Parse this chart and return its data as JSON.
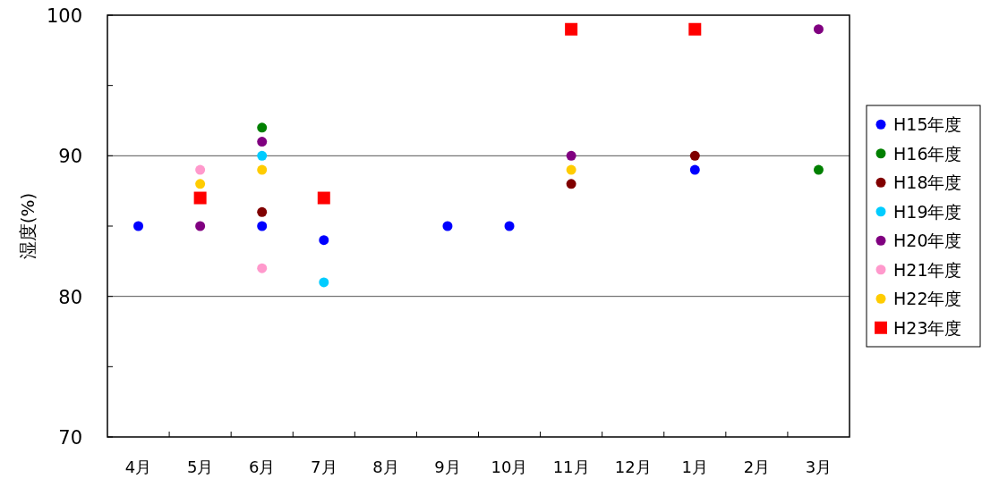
{
  "chart_data": {
    "type": "scatter",
    "ylabel": "湿度(%)",
    "categories": [
      "4月",
      "5月",
      "6月",
      "7月",
      "8月",
      "9月",
      "10月",
      "11月",
      "12月",
      "1月",
      "2月",
      "3月"
    ],
    "ylim": [
      70,
      100
    ],
    "yticks": [
      70,
      {
        "value": 75,
        "label": null
      },
      80,
      {
        "value": 85,
        "label": null
      },
      90,
      {
        "value": 95,
        "label": null
      },
      100
    ],
    "grid": "y",
    "legend": "right",
    "marker": "circle",
    "series": [
      {
        "name": "H15年度",
        "color": "#0000ff",
        "values": [
          85,
          null,
          85,
          84,
          null,
          85,
          85,
          null,
          null,
          89,
          null,
          null
        ]
      },
      {
        "name": "H16年度",
        "color": "#008000",
        "values": [
          null,
          null,
          92,
          null,
          null,
          null,
          null,
          null,
          null,
          null,
          null,
          89
        ]
      },
      {
        "name": "H18年度",
        "color": "#800000",
        "values": [
          null,
          null,
          86,
          null,
          null,
          null,
          null,
          88,
          null,
          90,
          null,
          null
        ]
      },
      {
        "name": "H19年度",
        "color": "#00ccff",
        "values": [
          null,
          null,
          90,
          81,
          null,
          null,
          null,
          null,
          null,
          null,
          null,
          null
        ]
      },
      {
        "name": "H20年度",
        "color": "#800080",
        "values": [
          null,
          85,
          91,
          null,
          null,
          null,
          null,
          90,
          null,
          null,
          null,
          99
        ]
      },
      {
        "name": "H21年度",
        "color": "#ff99cc",
        "values": [
          null,
          89,
          82,
          null,
          null,
          null,
          null,
          null,
          null,
          null,
          null,
          null
        ]
      },
      {
        "name": "H22年度",
        "color": "#ffcc00",
        "values": [
          null,
          88,
          89,
          null,
          null,
          null,
          null,
          89,
          null,
          null,
          null,
          null
        ]
      },
      {
        "name": "H23年度",
        "color": "#ff0000",
        "marker": "square",
        "values": [
          null,
          87,
          null,
          87,
          null,
          null,
          null,
          99,
          null,
          99,
          null,
          null
        ]
      }
    ]
  }
}
